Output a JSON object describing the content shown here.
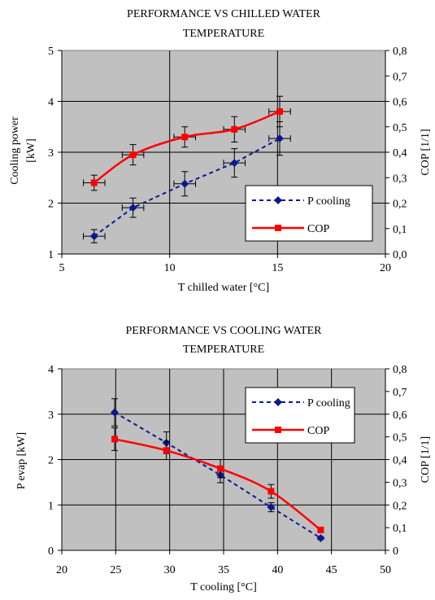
{
  "chart_data": [
    {
      "type": "line",
      "title_lines": [
        "PERFORMANCE VS CHILLED WATER",
        "TEMPERATURE"
      ],
      "xlabel": "T chilled water [°C]",
      "ylabel_lines": [
        "Cooling power",
        "[kW]"
      ],
      "y2label": "COP [1/1]",
      "xlim": [
        5,
        20
      ],
      "ylim": [
        1,
        5
      ],
      "y2lim": [
        0,
        0.8
      ],
      "x_ticks": [
        "5",
        "10",
        "15",
        "20"
      ],
      "y_ticks": [
        "1",
        "2",
        "3",
        "4",
        "5"
      ],
      "y2_ticks": [
        "0,0",
        "0,1",
        "0,2",
        "0,3",
        "0,4",
        "0,5",
        "0,6",
        "0,7",
        "0,8"
      ],
      "grid": true,
      "legend_placement": "lower-right",
      "series": [
        {
          "name": "P cooling",
          "axis": "left",
          "color": "#0a1a8c",
          "line_style": "dashed",
          "marker": "diamond",
          "x": [
            6.5,
            8.3,
            10.7,
            13.0,
            15.1
          ],
          "y": [
            1.35,
            1.91,
            2.38,
            2.79,
            3.27
          ],
          "y_err": [
            0.13,
            0.19,
            0.24,
            0.28,
            0.33
          ],
          "x_err": [
            0.5,
            0.5,
            0.5,
            0.5,
            0.5
          ]
        },
        {
          "name": "COP",
          "axis": "right",
          "color": "#ff0000",
          "line_style": "solid",
          "marker": "square",
          "x": [
            6.5,
            8.3,
            10.7,
            13.0,
            15.1
          ],
          "y": [
            0.28,
            0.39,
            0.46,
            0.49,
            0.56
          ],
          "y_err": [
            0.03,
            0.04,
            0.04,
            0.05,
            0.06
          ],
          "x_err": [
            0.5,
            0.5,
            0.5,
            0.5,
            0.5
          ]
        }
      ]
    },
    {
      "type": "line",
      "title_lines": [
        "PERFORMANCE VS COOLING WATER",
        "TEMPERATURE"
      ],
      "xlabel": "T cooling [°C]",
      "ylabel_lines": [
        "P evap [kW]"
      ],
      "y2label": "COP [1/1]",
      "xlim": [
        20,
        50
      ],
      "ylim": [
        0,
        4
      ],
      "y2lim": [
        0,
        0.8
      ],
      "x_ticks": [
        "20",
        "25",
        "30",
        "35",
        "40",
        "45",
        "50"
      ],
      "y_ticks": [
        "0",
        "1",
        "2",
        "3",
        "4"
      ],
      "y2_ticks": [
        "0",
        "0,1",
        "0,2",
        "0,3",
        "0,4",
        "0,5",
        "0,6",
        "0,7",
        "0,8"
      ],
      "grid": true,
      "legend_placement": "top-right",
      "series": [
        {
          "name": "P cooling",
          "axis": "left",
          "color": "#0a1a8c",
          "line_style": "dashed",
          "marker": "diamond",
          "x": [
            24.9,
            29.7,
            34.7,
            39.4,
            44.0
          ],
          "y": [
            3.04,
            2.37,
            1.66,
            0.95,
            0.27
          ],
          "y_err": [
            0.3,
            0.24,
            0.17,
            0.1,
            0.03
          ],
          "x_err": [
            0,
            0,
            0,
            0,
            0
          ]
        },
        {
          "name": "COP",
          "axis": "right",
          "color": "#ff0000",
          "line_style": "solid",
          "marker": "square",
          "x": [
            24.9,
            29.7,
            34.7,
            39.4,
            44.0
          ],
          "y": [
            0.49,
            0.44,
            0.36,
            0.26,
            0.09
          ],
          "y_err": [
            0.05,
            0.04,
            0.04,
            0.03,
            0.01
          ],
          "x_err": [
            0,
            0,
            0,
            0,
            0
          ]
        }
      ]
    }
  ]
}
